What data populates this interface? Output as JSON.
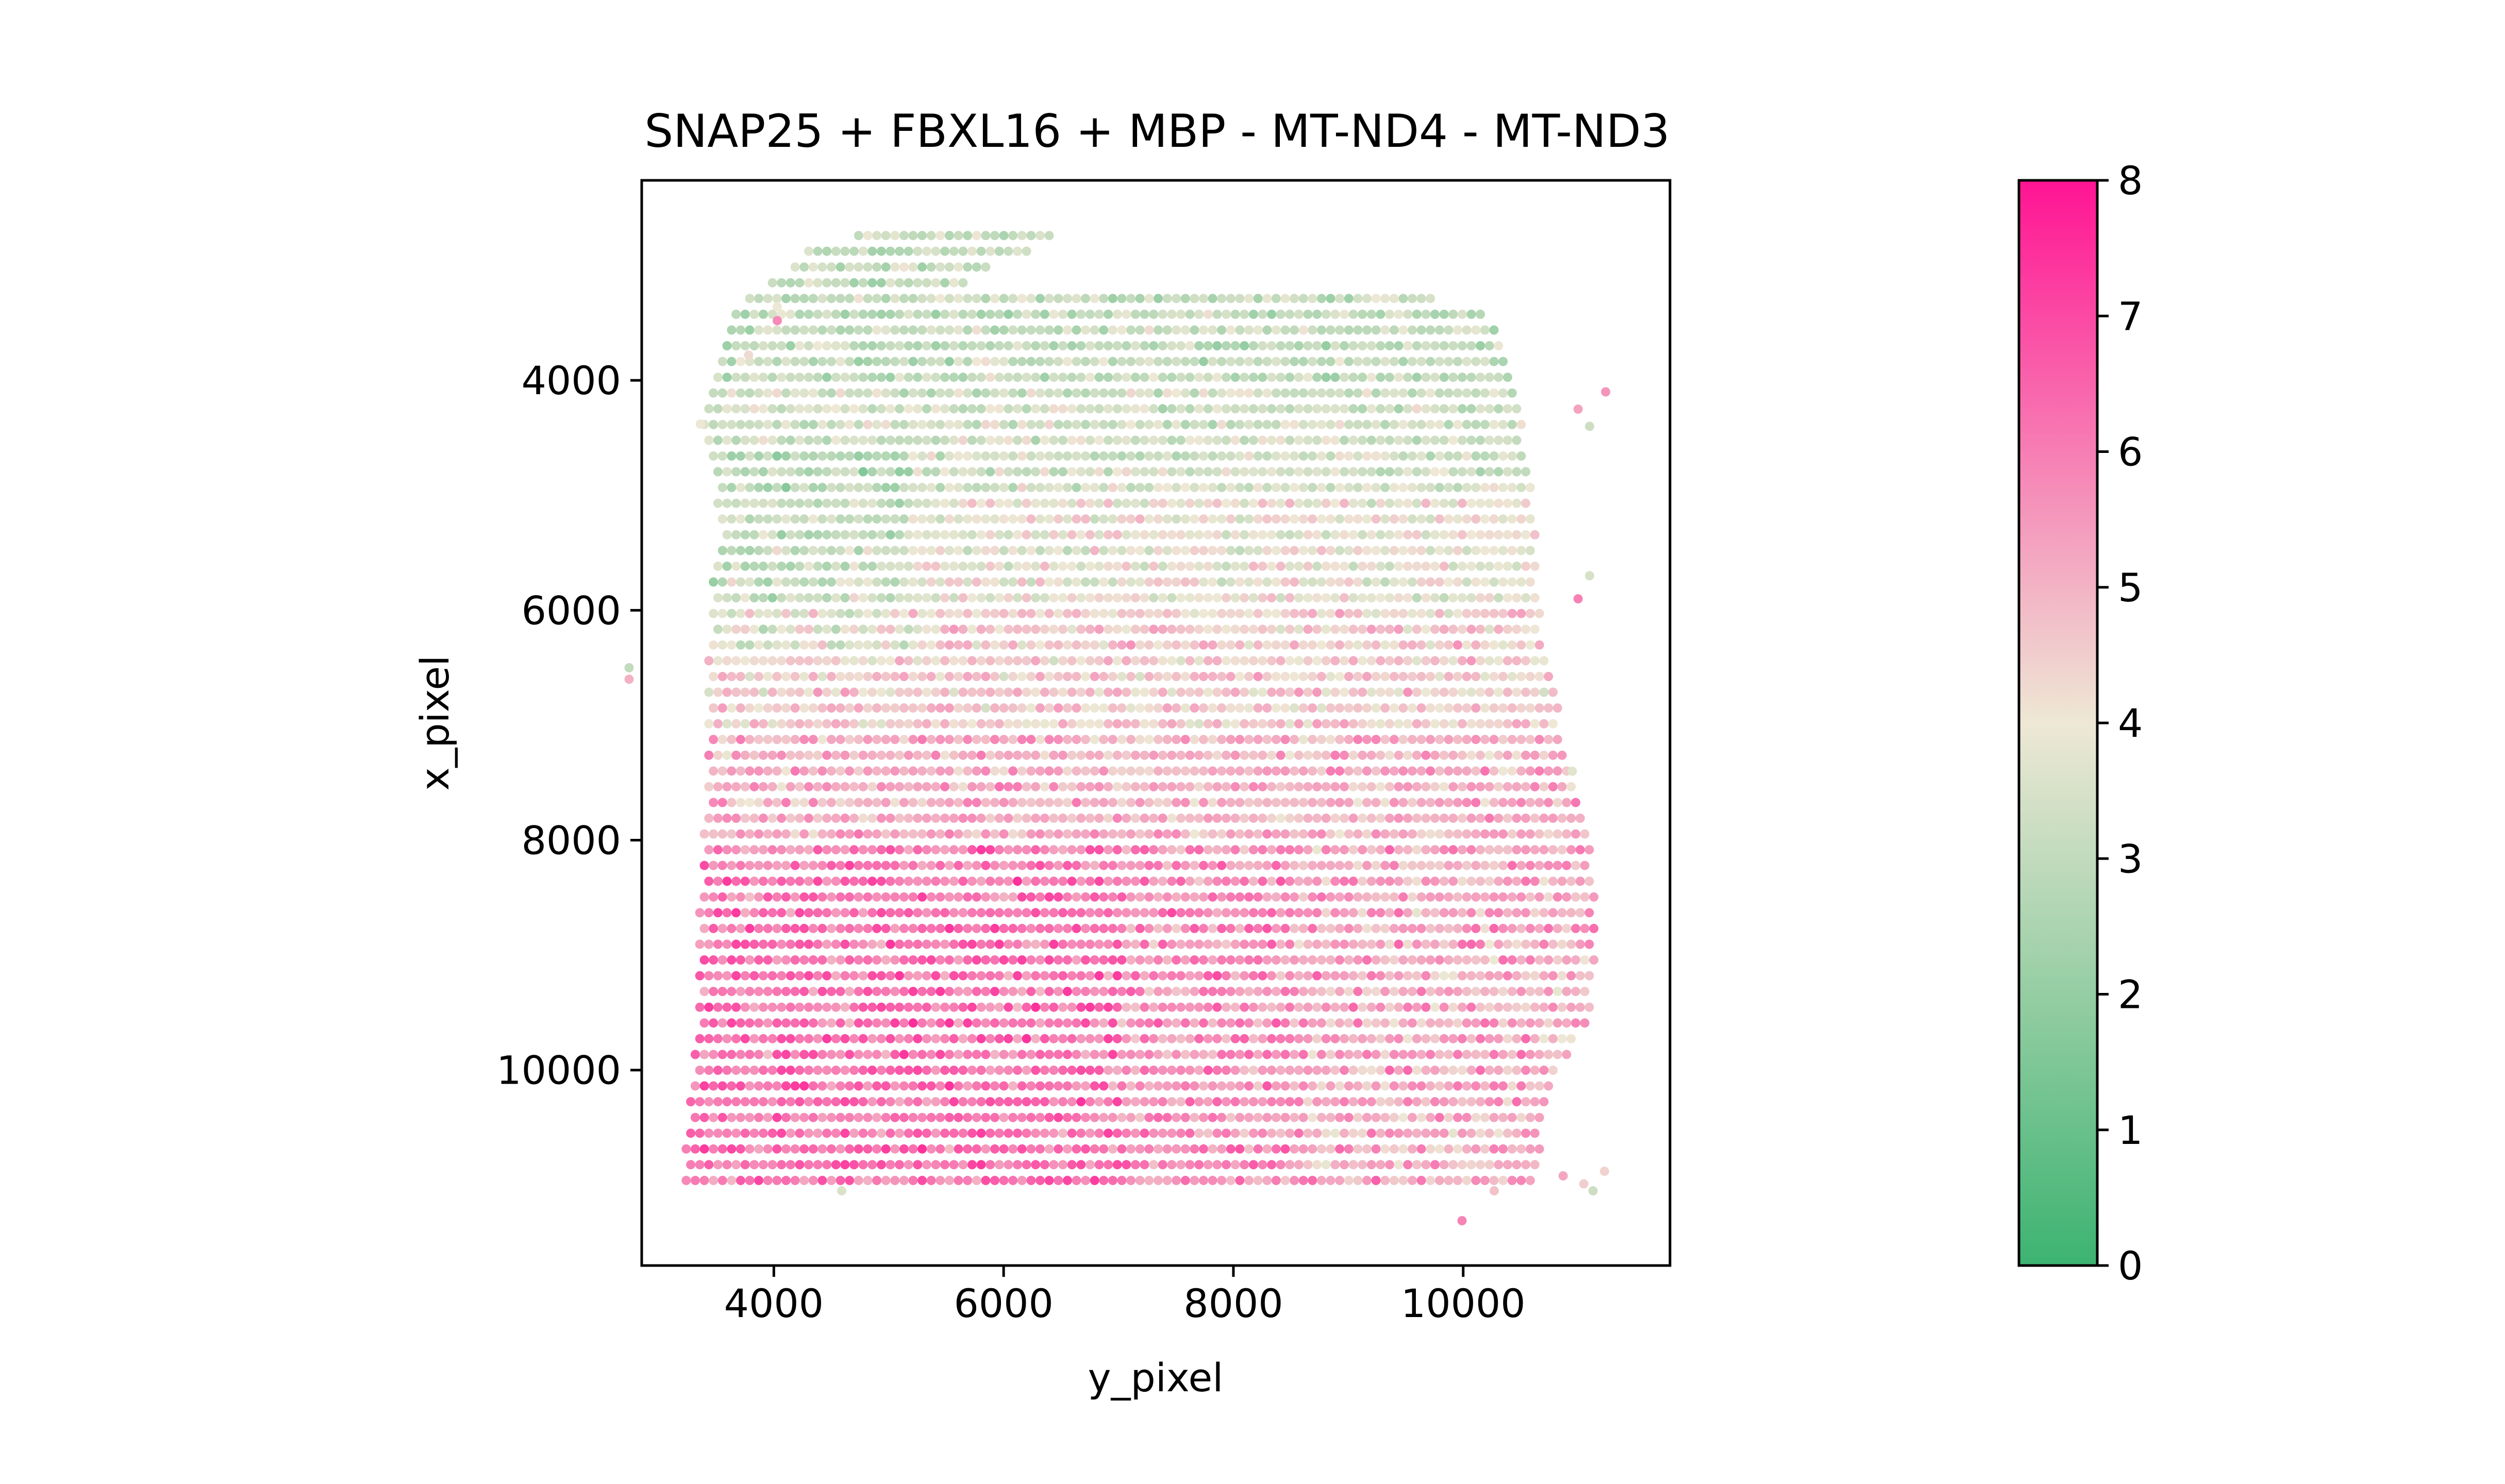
{
  "chart_data": {
    "type": "scatter",
    "title": "SNAP25 + FBXL16 + MBP - MT-ND4 - MT-ND3",
    "xlabel": "y_pixel",
    "ylabel": "x_pixel",
    "xlim": [
      2850,
      11800
    ],
    "ylim": [
      11700,
      2260
    ],
    "y_inverted": true,
    "xticks": [
      4000,
      6000,
      8000,
      10000
    ],
    "xtick_labels": [
      "4000",
      "6000",
      "8000",
      "10000"
    ],
    "yticks": [
      4000,
      6000,
      8000,
      10000
    ],
    "ytick_labels": [
      "4000",
      "6000",
      "8000",
      "10000"
    ],
    "grid": false,
    "legend": "none",
    "colorbar": {
      "vmin": 0,
      "vmax": 8,
      "ticks": [
        0,
        1,
        2,
        3,
        4,
        5,
        6,
        7,
        8
      ],
      "tick_labels": [
        "0",
        "1",
        "2",
        "3",
        "4",
        "5",
        "6",
        "7",
        "8"
      ],
      "colors": [
        "#3cb371",
        "#eee8d5",
        "#ff1493"
      ],
      "placement": "right"
    },
    "spot_grid": {
      "row_spacing": 137,
      "col_spacing": 79,
      "first_row_y": 2740,
      "last_row_y": 11260,
      "outline": [
        [
          2740,
          4700,
          6420
        ],
        [
          2880,
          4250,
          6200
        ],
        [
          3020,
          4100,
          5900
        ],
        [
          3160,
          3900,
          5700
        ],
        [
          3300,
          3700,
          10150
        ],
        [
          3440,
          3650,
          10200
        ],
        [
          3580,
          3620,
          10300
        ],
        [
          3720,
          3580,
          10350
        ],
        [
          3860,
          3500,
          10400
        ],
        [
          4000,
          3480,
          10450
        ],
        [
          4200,
          3450,
          10500
        ],
        [
          4400,
          3380,
          10520
        ],
        [
          4600,
          3420,
          10550
        ],
        [
          4800,
          3470,
          10580
        ],
        [
          5000,
          3500,
          10600
        ],
        [
          5300,
          3520,
          10620
        ],
        [
          5600,
          3480,
          10650
        ],
        [
          6000,
          3450,
          10680
        ],
        [
          6400,
          3430,
          10730
        ],
        [
          6800,
          3420,
          10820
        ],
        [
          7200,
          3410,
          10900
        ],
        [
          7600,
          3400,
          10980
        ],
        [
          8000,
          3380,
          11100
        ],
        [
          8400,
          3360,
          11150
        ],
        [
          8800,
          3340,
          11150
        ],
        [
          9200,
          3330,
          11130
        ],
        [
          9600,
          3330,
          11100
        ],
        [
          10000,
          3280,
          10800
        ],
        [
          10400,
          3250,
          10700
        ],
        [
          10800,
          3220,
          10650
        ],
        [
          10940,
          3200,
          10600
        ]
      ],
      "bands": [
        [
          2700,
          4000,
          2.6,
          3.6
        ],
        [
          4000,
          5000,
          3.0,
          3.8
        ],
        [
          5000,
          6000,
          3.4,
          4.4
        ],
        [
          6000,
          7000,
          4.0,
          5.0
        ],
        [
          7000,
          8000,
          4.5,
          5.6
        ],
        [
          8000,
          11300,
          5.0,
          6.3
        ]
      ],
      "isolated_spots": [
        [
          4380,
          3360
        ],
        [
          3780,
          3780
        ],
        [
          3360,
          4030
        ],
        [
          3480,
          4030
        ],
        [
          11050,
          4590
        ],
        [
          11310,
          9990
        ],
        [
          11050,
          10270
        ],
        [
          10920,
          10870
        ],
        [
          10990,
          11050
        ],
        [
          11050,
          11130
        ],
        [
          10880,
          11230
        ],
        [
          4100,
          11240
        ],
        [
          4250,
          11000
        ],
        [
          4400,
          11100
        ],
        [
          5700,
          11100
        ],
        [
          5900,
          11000
        ],
        [
          7400,
          10950
        ],
        [
          6500,
          2740
        ],
        [
          6600,
          2740
        ]
      ]
    }
  }
}
